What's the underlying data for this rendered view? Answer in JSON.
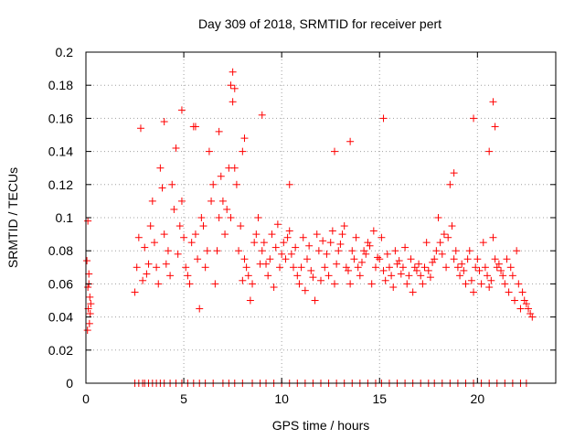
{
  "chart_data": {
    "type": "scatter",
    "title": "Day 309 of 2018, SRMTID for receiver pert",
    "xlabel": "GPS time / hours",
    "ylabel": "SRMTID / TECUs",
    "xlim": [
      0,
      24
    ],
    "ylim": [
      0,
      0.2
    ],
    "x_ticks": [
      0,
      5,
      10,
      15,
      20
    ],
    "x_tick_labels": [
      "0",
      "5",
      "10",
      "15",
      "20"
    ],
    "y_ticks": [
      0,
      0.02,
      0.04,
      0.06,
      0.08,
      0.1,
      0.12,
      0.14,
      0.16,
      0.18,
      0.2
    ],
    "y_tick_labels": [
      "0",
      "0.02",
      "0.04",
      "0.06",
      "0.08",
      "0.1",
      "0.12",
      "0.14",
      "0.16",
      "0.18",
      "0.2"
    ],
    "grid": true,
    "marker": "+",
    "color": "#ff0000",
    "series": [
      {
        "name": "SRMTID",
        "x": [
          0.05,
          0.08,
          0.1,
          0.12,
          0.15,
          0.18,
          0.2,
          0.22,
          0.25,
          0.1,
          0.15,
          2.5,
          2.6,
          2.7,
          2.8,
          2.9,
          3.0,
          3.1,
          3.2,
          3.3,
          3.4,
          3.5,
          3.6,
          3.7,
          3.8,
          3.9,
          4.0,
          4.1,
          4.2,
          4.3,
          4.4,
          4.5,
          4.6,
          4.7,
          4.8,
          4.9,
          5.0,
          5.1,
          5.2,
          5.3,
          5.4,
          5.5,
          5.6,
          5.7,
          5.8,
          5.9,
          6.0,
          6.1,
          6.2,
          6.3,
          6.4,
          6.5,
          6.6,
          6.7,
          6.8,
          6.9,
          7.0,
          7.1,
          7.2,
          7.3,
          7.4,
          7.5,
          7.6,
          7.7,
          7.8,
          7.9,
          8.0,
          8.1,
          8.2,
          8.3,
          8.4,
          8.5,
          8.6,
          8.7,
          8.8,
          8.9,
          9.0,
          9.1,
          9.2,
          9.3,
          9.4,
          9.5,
          9.6,
          9.7,
          9.8,
          9.9,
          10.0,
          10.1,
          10.2,
          10.3,
          10.4,
          10.5,
          10.6,
          10.7,
          10.8,
          10.9,
          11.0,
          11.1,
          11.2,
          11.3,
          11.4,
          11.5,
          11.6,
          11.7,
          11.8,
          11.9,
          12.0,
          12.1,
          12.2,
          12.3,
          12.4,
          12.5,
          12.6,
          12.7,
          12.8,
          12.9,
          13.0,
          13.1,
          13.2,
          13.3,
          13.4,
          13.5,
          13.6,
          13.7,
          13.8,
          13.9,
          14.0,
          14.1,
          14.2,
          14.3,
          14.4,
          14.5,
          14.6,
          14.7,
          14.8,
          14.9,
          15.0,
          15.1,
          15.2,
          15.3,
          15.4,
          15.5,
          15.6,
          15.7,
          15.8,
          15.9,
          16.0,
          16.1,
          16.2,
          16.3,
          16.4,
          16.5,
          16.6,
          16.7,
          16.8,
          16.9,
          17.0,
          17.1,
          17.2,
          17.3,
          17.4,
          17.5,
          17.6,
          17.7,
          17.8,
          17.9,
          18.0,
          18.1,
          18.2,
          18.3,
          18.4,
          18.5,
          18.6,
          18.7,
          18.8,
          18.9,
          19.0,
          19.1,
          19.2,
          19.3,
          19.4,
          19.5,
          19.6,
          19.7,
          19.8,
          19.9,
          20.0,
          20.1,
          20.2,
          20.3,
          20.4,
          20.5,
          20.6,
          20.7,
          20.8,
          20.9,
          21.0,
          21.1,
          21.2,
          21.3,
          21.4,
          21.5,
          21.6,
          21.7,
          21.8,
          21.9,
          22.0,
          22.1,
          22.2,
          22.3,
          22.4,
          22.5,
          22.6,
          22.7,
          22.8,
          7.4,
          7.5,
          7.6,
          4.0,
          4.9,
          5.6,
          6.8,
          9.0,
          10.4,
          15.2,
          19.8,
          20.8,
          20.9,
          20.6,
          18.8,
          8.1,
          8.0,
          12.7,
          13.5
        ],
        "y": [
          0.074,
          0.032,
          0.058,
          0.045,
          0.06,
          0.036,
          0.052,
          0.042,
          0.048,
          0.098,
          0.066,
          0.055,
          0.07,
          0.088,
          0.154,
          0.062,
          0.082,
          0.066,
          0.072,
          0.095,
          0.11,
          0.085,
          0.07,
          0.06,
          0.13,
          0.118,
          0.09,
          0.072,
          0.08,
          0.065,
          0.12,
          0.105,
          0.142,
          0.078,
          0.095,
          0.11,
          0.088,
          0.07,
          0.065,
          0.06,
          0.085,
          0.155,
          0.09,
          0.075,
          0.045,
          0.1,
          0.095,
          0.07,
          0.08,
          0.14,
          0.11,
          0.12,
          0.06,
          0.08,
          0.1,
          0.125,
          0.11,
          0.09,
          0.105,
          0.13,
          0.1,
          0.17,
          0.13,
          0.12,
          0.08,
          0.095,
          0.062,
          0.075,
          0.07,
          0.065,
          0.05,
          0.06,
          0.085,
          0.09,
          0.1,
          0.072,
          0.08,
          0.085,
          0.072,
          0.065,
          0.075,
          0.09,
          0.058,
          0.082,
          0.096,
          0.07,
          0.078,
          0.085,
          0.075,
          0.088,
          0.092,
          0.078,
          0.07,
          0.082,
          0.065,
          0.06,
          0.07,
          0.088,
          0.056,
          0.075,
          0.083,
          0.068,
          0.064,
          0.05,
          0.09,
          0.08,
          0.062,
          0.086,
          0.07,
          0.078,
          0.065,
          0.085,
          0.092,
          0.06,
          0.072,
          0.08,
          0.084,
          0.09,
          0.095,
          0.07,
          0.068,
          0.06,
          0.08,
          0.075,
          0.088,
          0.07,
          0.065,
          0.073,
          0.08,
          0.078,
          0.085,
          0.083,
          0.06,
          0.092,
          0.07,
          0.076,
          0.075,
          0.088,
          0.068,
          0.062,
          0.078,
          0.07,
          0.065,
          0.058,
          0.08,
          0.072,
          0.074,
          0.066,
          0.07,
          0.082,
          0.06,
          0.065,
          0.075,
          0.055,
          0.07,
          0.068,
          0.072,
          0.065,
          0.06,
          0.07,
          0.085,
          0.068,
          0.064,
          0.073,
          0.075,
          0.08,
          0.1,
          0.085,
          0.078,
          0.09,
          0.07,
          0.088,
          0.12,
          0.095,
          0.075,
          0.08,
          0.07,
          0.065,
          0.072,
          0.068,
          0.06,
          0.075,
          0.08,
          0.062,
          0.055,
          0.07,
          0.075,
          0.068,
          0.06,
          0.085,
          0.07,
          0.065,
          0.058,
          0.062,
          0.088,
          0.075,
          0.07,
          0.072,
          0.068,
          0.065,
          0.06,
          0.075,
          0.055,
          0.07,
          0.065,
          0.05,
          0.08,
          0.06,
          0.045,
          0.055,
          0.05,
          0.048,
          0.045,
          0.042,
          0.04,
          0.18,
          0.188,
          0.178,
          0.158,
          0.165,
          0.155,
          0.152,
          0.162,
          0.12,
          0.16,
          0.16,
          0.17,
          0.155,
          0.14,
          0.127,
          0.148,
          0.14,
          0.14,
          0.146
        ],
        "baseline_x": [
          2.5,
          2.7,
          2.9,
          3.0,
          3.2,
          3.4,
          3.6,
          3.8,
          4.0,
          4.3,
          4.6,
          4.9,
          5.2,
          5.5,
          5.8,
          6.1,
          6.5,
          7.0,
          7.3,
          7.6,
          8.0,
          8.5,
          8.9,
          9.2,
          9.6,
          10.0,
          10.4,
          10.8,
          11.2,
          11.6,
          12.0,
          12.4,
          12.8,
          13.2,
          13.6,
          14.0,
          14.4,
          14.8,
          15.1,
          15.5,
          15.9,
          16.3,
          16.7,
          17.1,
          17.5,
          17.8,
          18.2,
          18.6,
          19.0,
          19.4,
          19.8,
          20.2,
          20.6,
          21.0,
          21.4,
          21.8,
          22.2,
          22.5
        ],
        "baseline_y": 0
      }
    ]
  }
}
